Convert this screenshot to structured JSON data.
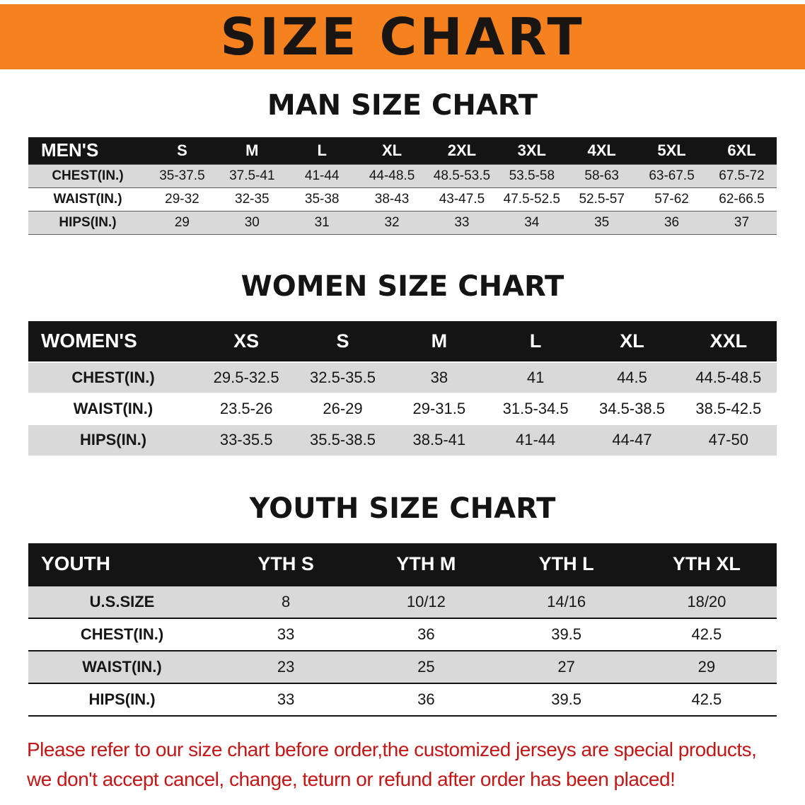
{
  "banner": {
    "title": "SIZE CHART",
    "background_color": "#F5821F",
    "text_color": "#181512"
  },
  "sections": [
    {
      "heading": "MAN SIZE CHART",
      "table": {
        "header": [
          "MEN'S",
          "S",
          "M",
          "L",
          "XL",
          "2XL",
          "3XL",
          "4XL",
          "5XL",
          "6XL"
        ],
        "rows": [
          {
            "label": "CHEST(IN.)",
            "values": [
              "35-37.5",
              "37.5-41",
              "41-44",
              "44-48.5",
              "48.5-53.5",
              "53.5-58",
              "58-63",
              "63-67.5",
              "67.5-72"
            ]
          },
          {
            "label": "WAIST(IN.)",
            "values": [
              "29-32",
              "32-35",
              "35-38",
              "38-43",
              "43-47.5",
              "47.5-52.5",
              "52.5-57",
              "57-62",
              "62-66.5"
            ]
          },
          {
            "label": "HIPS(IN.)",
            "values": [
              "29",
              "30",
              "31",
              "32",
              "33",
              "34",
              "35",
              "36",
              "37"
            ]
          }
        ]
      }
    },
    {
      "heading": "WOMEN SIZE CHART",
      "table": {
        "header": [
          "WOMEN'S",
          "XS",
          "S",
          "M",
          "L",
          "XL",
          "XXL"
        ],
        "rows": [
          {
            "label": "CHEST(IN.)",
            "values": [
              "29.5-32.5",
              "32.5-35.5",
              "38",
              "41",
              "44.5",
              "44.5-48.5"
            ]
          },
          {
            "label": "WAIST(IN.)",
            "values": [
              "23.5-26",
              "26-29",
              "29-31.5",
              "31.5-34.5",
              "34.5-38.5",
              "38.5-42.5"
            ]
          },
          {
            "label": "HIPS(IN.)",
            "values": [
              "33-35.5",
              "35.5-38.5",
              "38.5-41",
              "41-44",
              "44-47",
              "47-50"
            ]
          }
        ]
      }
    },
    {
      "heading": "YOUTH SIZE CHART",
      "table": {
        "header": [
          "YOUTH",
          "YTH S",
          "YTH M",
          "YTH L",
          "YTH XL"
        ],
        "rows": [
          {
            "label": "U.S.SIZE",
            "values": [
              "8",
              "10/12",
              "14/16",
              "18/20"
            ]
          },
          {
            "label": "CHEST(IN.)",
            "values": [
              "33",
              "36",
              "39.5",
              "42.5"
            ]
          },
          {
            "label": "WAIST(IN.)",
            "values": [
              "23",
              "25",
              "27",
              "29"
            ]
          },
          {
            "label": "HIPS(IN.)",
            "values": [
              "33",
              "36",
              "39.5",
              "42.5"
            ]
          }
        ]
      }
    }
  ],
  "footer": {
    "line1": "Please refer to our size chart before order,the customized jerseys are special products,",
    "line2": "we don't accept cancel, change, teturn or refund after order has been placed!",
    "text_color": "#C21717"
  },
  "colors": {
    "header_bar": "#141414",
    "row_shade": "#D9D9D9"
  }
}
